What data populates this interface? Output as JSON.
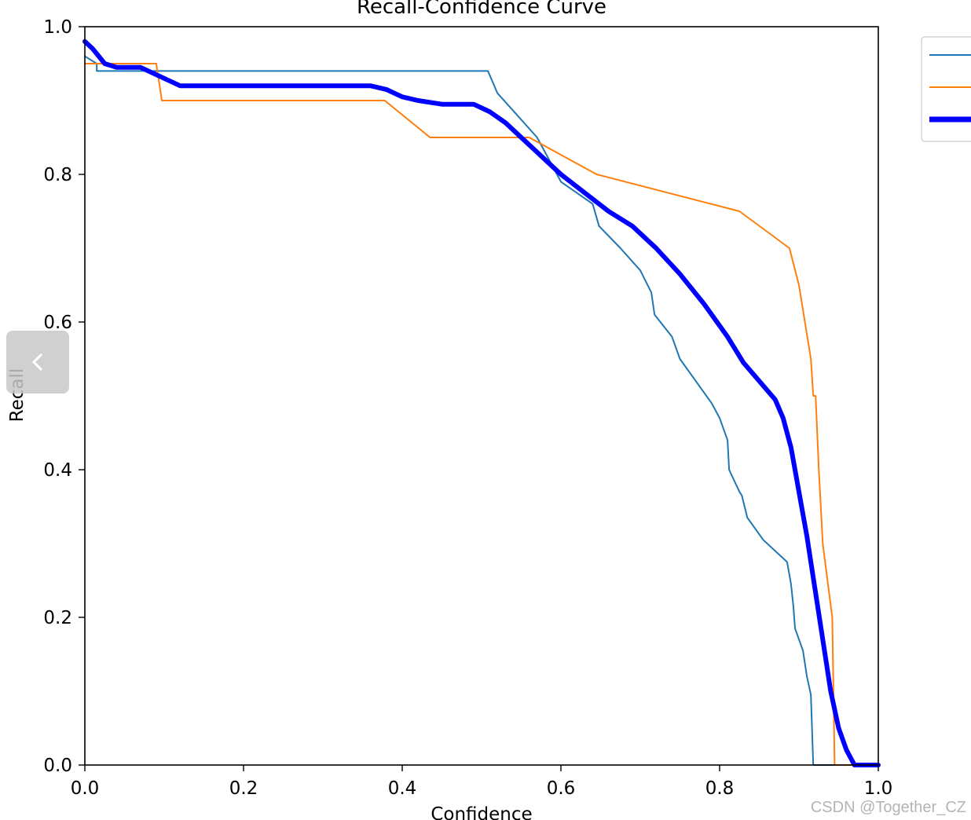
{
  "chart_data": {
    "type": "line",
    "title": "Recall-Confidence Curve",
    "xlabel": "Confidence",
    "ylabel": "Recall",
    "xlim": [
      0.0,
      1.0
    ],
    "ylim": [
      0.0,
      1.0
    ],
    "xticks": [
      "0.0",
      "0.2",
      "0.4",
      "0.6",
      "0.8",
      "1.0"
    ],
    "yticks": [
      "0.0",
      "0.2",
      "0.4",
      "0.6",
      "0.8",
      "1.0"
    ],
    "grid": false,
    "legend": "upper right, outside plot",
    "series": [
      {
        "color": "#1f77b4",
        "line_width": "thin",
        "x": [
          0.0,
          0.015,
          0.015,
          0.508,
          0.52,
          0.545,
          0.57,
          0.6,
          0.64,
          0.648,
          0.675,
          0.7,
          0.714,
          0.718,
          0.74,
          0.75,
          0.77,
          0.79,
          0.8,
          0.81,
          0.812,
          0.825,
          0.828,
          0.835,
          0.855,
          0.885,
          0.89,
          0.893,
          0.895,
          0.905,
          0.91,
          0.915,
          0.918,
          0.95,
          1.0
        ],
        "y": [
          0.96,
          0.95,
          0.94,
          0.94,
          0.91,
          0.88,
          0.85,
          0.79,
          0.76,
          0.73,
          0.7,
          0.67,
          0.64,
          0.61,
          0.58,
          0.55,
          0.52,
          0.49,
          0.47,
          0.44,
          0.4,
          0.37,
          0.365,
          0.335,
          0.305,
          0.275,
          0.245,
          0.215,
          0.185,
          0.155,
          0.12,
          0.095,
          0.0,
          0.0,
          0.0
        ]
      },
      {
        "color": "#ff7f0e",
        "line_width": "thin",
        "x": [
          0.0,
          0.09,
          0.097,
          0.378,
          0.435,
          0.56,
          0.645,
          0.825,
          0.888,
          0.9,
          0.915,
          0.918,
          0.921,
          0.925,
          0.928,
          0.93,
          0.942,
          0.945,
          1.0
        ],
        "y": [
          0.95,
          0.95,
          0.9,
          0.9,
          0.85,
          0.85,
          0.8,
          0.75,
          0.7,
          0.65,
          0.55,
          0.5,
          0.5,
          0.4,
          0.34,
          0.3,
          0.2,
          0.0,
          0.0
        ]
      },
      {
        "color": "#0000ff",
        "line_width": "thick",
        "x": [
          0.0,
          0.01,
          0.025,
          0.04,
          0.07,
          0.12,
          0.2,
          0.3,
          0.36,
          0.38,
          0.4,
          0.42,
          0.45,
          0.49,
          0.51,
          0.53,
          0.55,
          0.57,
          0.6,
          0.63,
          0.66,
          0.69,
          0.72,
          0.75,
          0.78,
          0.81,
          0.83,
          0.85,
          0.87,
          0.88,
          0.89,
          0.9,
          0.91,
          0.92,
          0.93,
          0.94,
          0.95,
          0.96,
          0.97,
          1.0
        ],
        "y": [
          0.98,
          0.97,
          0.95,
          0.945,
          0.945,
          0.92,
          0.92,
          0.92,
          0.92,
          0.915,
          0.905,
          0.9,
          0.895,
          0.895,
          0.885,
          0.87,
          0.85,
          0.83,
          0.8,
          0.775,
          0.75,
          0.73,
          0.7,
          0.665,
          0.625,
          0.58,
          0.545,
          0.52,
          0.495,
          0.47,
          0.43,
          0.37,
          0.31,
          0.24,
          0.17,
          0.1,
          0.05,
          0.02,
          0.0,
          0.0
        ]
      }
    ]
  },
  "watermark": "CSDN @Together_CZ",
  "nav": {
    "back_icon": "chevron-left-icon"
  }
}
